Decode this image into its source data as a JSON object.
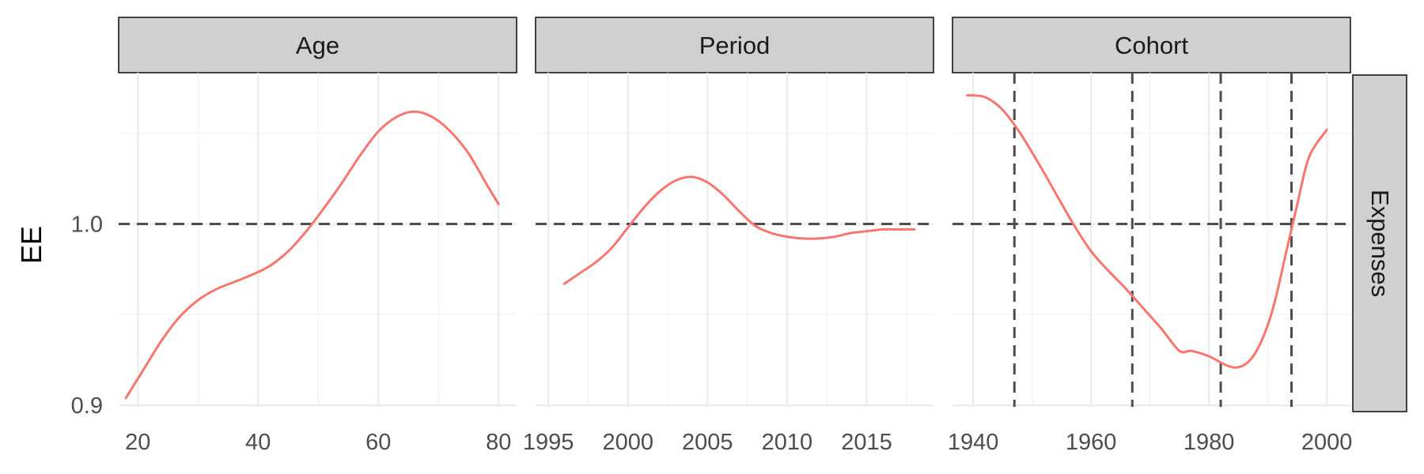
{
  "chart_data": {
    "type": "line",
    "ylabel": "EE",
    "row_strip": "Expenses",
    "y_ticks": [
      0.9,
      1.0
    ],
    "y_tick_labels": [
      "0.9",
      "1.0"
    ],
    "ylim": [
      0.9,
      1.08
    ],
    "y_minor_gridlines": [
      0.95,
      1.05
    ],
    "h_reference_line": 1.0,
    "line_color": "#F8766D",
    "reference_color": "#4d4d4d",
    "grid": true,
    "panels": [
      {
        "title": "Age",
        "xlim": [
          16.8,
          83
        ],
        "x_ticks": [
          20,
          40,
          60,
          80
        ],
        "x_tick_labels": [
          "20",
          "40",
          "60",
          "80"
        ],
        "x_minor_gridlines": [
          30,
          50,
          70
        ],
        "v_reference_lines": [],
        "x": [
          18,
          21,
          24,
          27,
          30,
          33,
          36,
          39,
          42,
          45,
          48,
          51,
          54,
          57,
          60,
          63,
          66,
          69,
          72,
          75,
          78,
          80
        ],
        "y": [
          0.904,
          0.92,
          0.936,
          0.949,
          0.958,
          0.964,
          0.968,
          0.972,
          0.977,
          0.985,
          0.996,
          1.009,
          1.023,
          1.038,
          1.051,
          1.059,
          1.062,
          1.059,
          1.051,
          1.039,
          1.022,
          1.011
        ]
      },
      {
        "title": "Period",
        "xlim": [
          1994.2,
          2019.2
        ],
        "x_ticks": [
          1995,
          2000,
          2005,
          2010,
          2015
        ],
        "x_tick_labels": [
          "1995",
          "2000",
          "2005",
          "2010",
          "2015"
        ],
        "x_minor_gridlines": [
          1997.5,
          2002.5,
          2007.5,
          2012.5,
          2017.5
        ],
        "v_reference_lines": [],
        "x": [
          1996,
          1997,
          1998,
          1999,
          2000,
          2001,
          2002,
          2003,
          2004,
          2005,
          2006,
          2007,
          2008,
          2009,
          2010,
          2011,
          2012,
          2013,
          2014,
          2015,
          2016,
          2017,
          2018
        ],
        "y": [
          0.967,
          0.973,
          0.979,
          0.987,
          0.998,
          1.009,
          1.018,
          1.024,
          1.026,
          1.023,
          1.016,
          1.007,
          0.999,
          0.995,
          0.993,
          0.992,
          0.992,
          0.993,
          0.995,
          0.996,
          0.997,
          0.997,
          0.997
        ]
      },
      {
        "title": "Cohort",
        "xlim": [
          1936.5,
          2004
        ],
        "x_ticks": [
          1940,
          1960,
          1980,
          2000
        ],
        "x_tick_labels": [
          "1940",
          "1960",
          "1980",
          "2000"
        ],
        "x_minor_gridlines": [
          1950,
          1970,
          1990
        ],
        "v_reference_lines": [
          1947,
          1967,
          1982,
          1994
        ],
        "x": [
          1939,
          1942,
          1945,
          1948,
          1951,
          1954,
          1957,
          1960,
          1963,
          1966,
          1969,
          1972,
          1975,
          1977,
          1980,
          1983,
          1985,
          1987,
          1989,
          1991,
          1993,
          1995,
          1997,
          2000
        ],
        "y": [
          1.071,
          1.07,
          1.063,
          1.05,
          1.034,
          1.017,
          1.0,
          0.985,
          0.974,
          0.964,
          0.953,
          0.942,
          0.93,
          0.93,
          0.927,
          0.922,
          0.921,
          0.925,
          0.936,
          0.955,
          0.983,
          1.011,
          1.037,
          1.052
        ]
      }
    ]
  }
}
